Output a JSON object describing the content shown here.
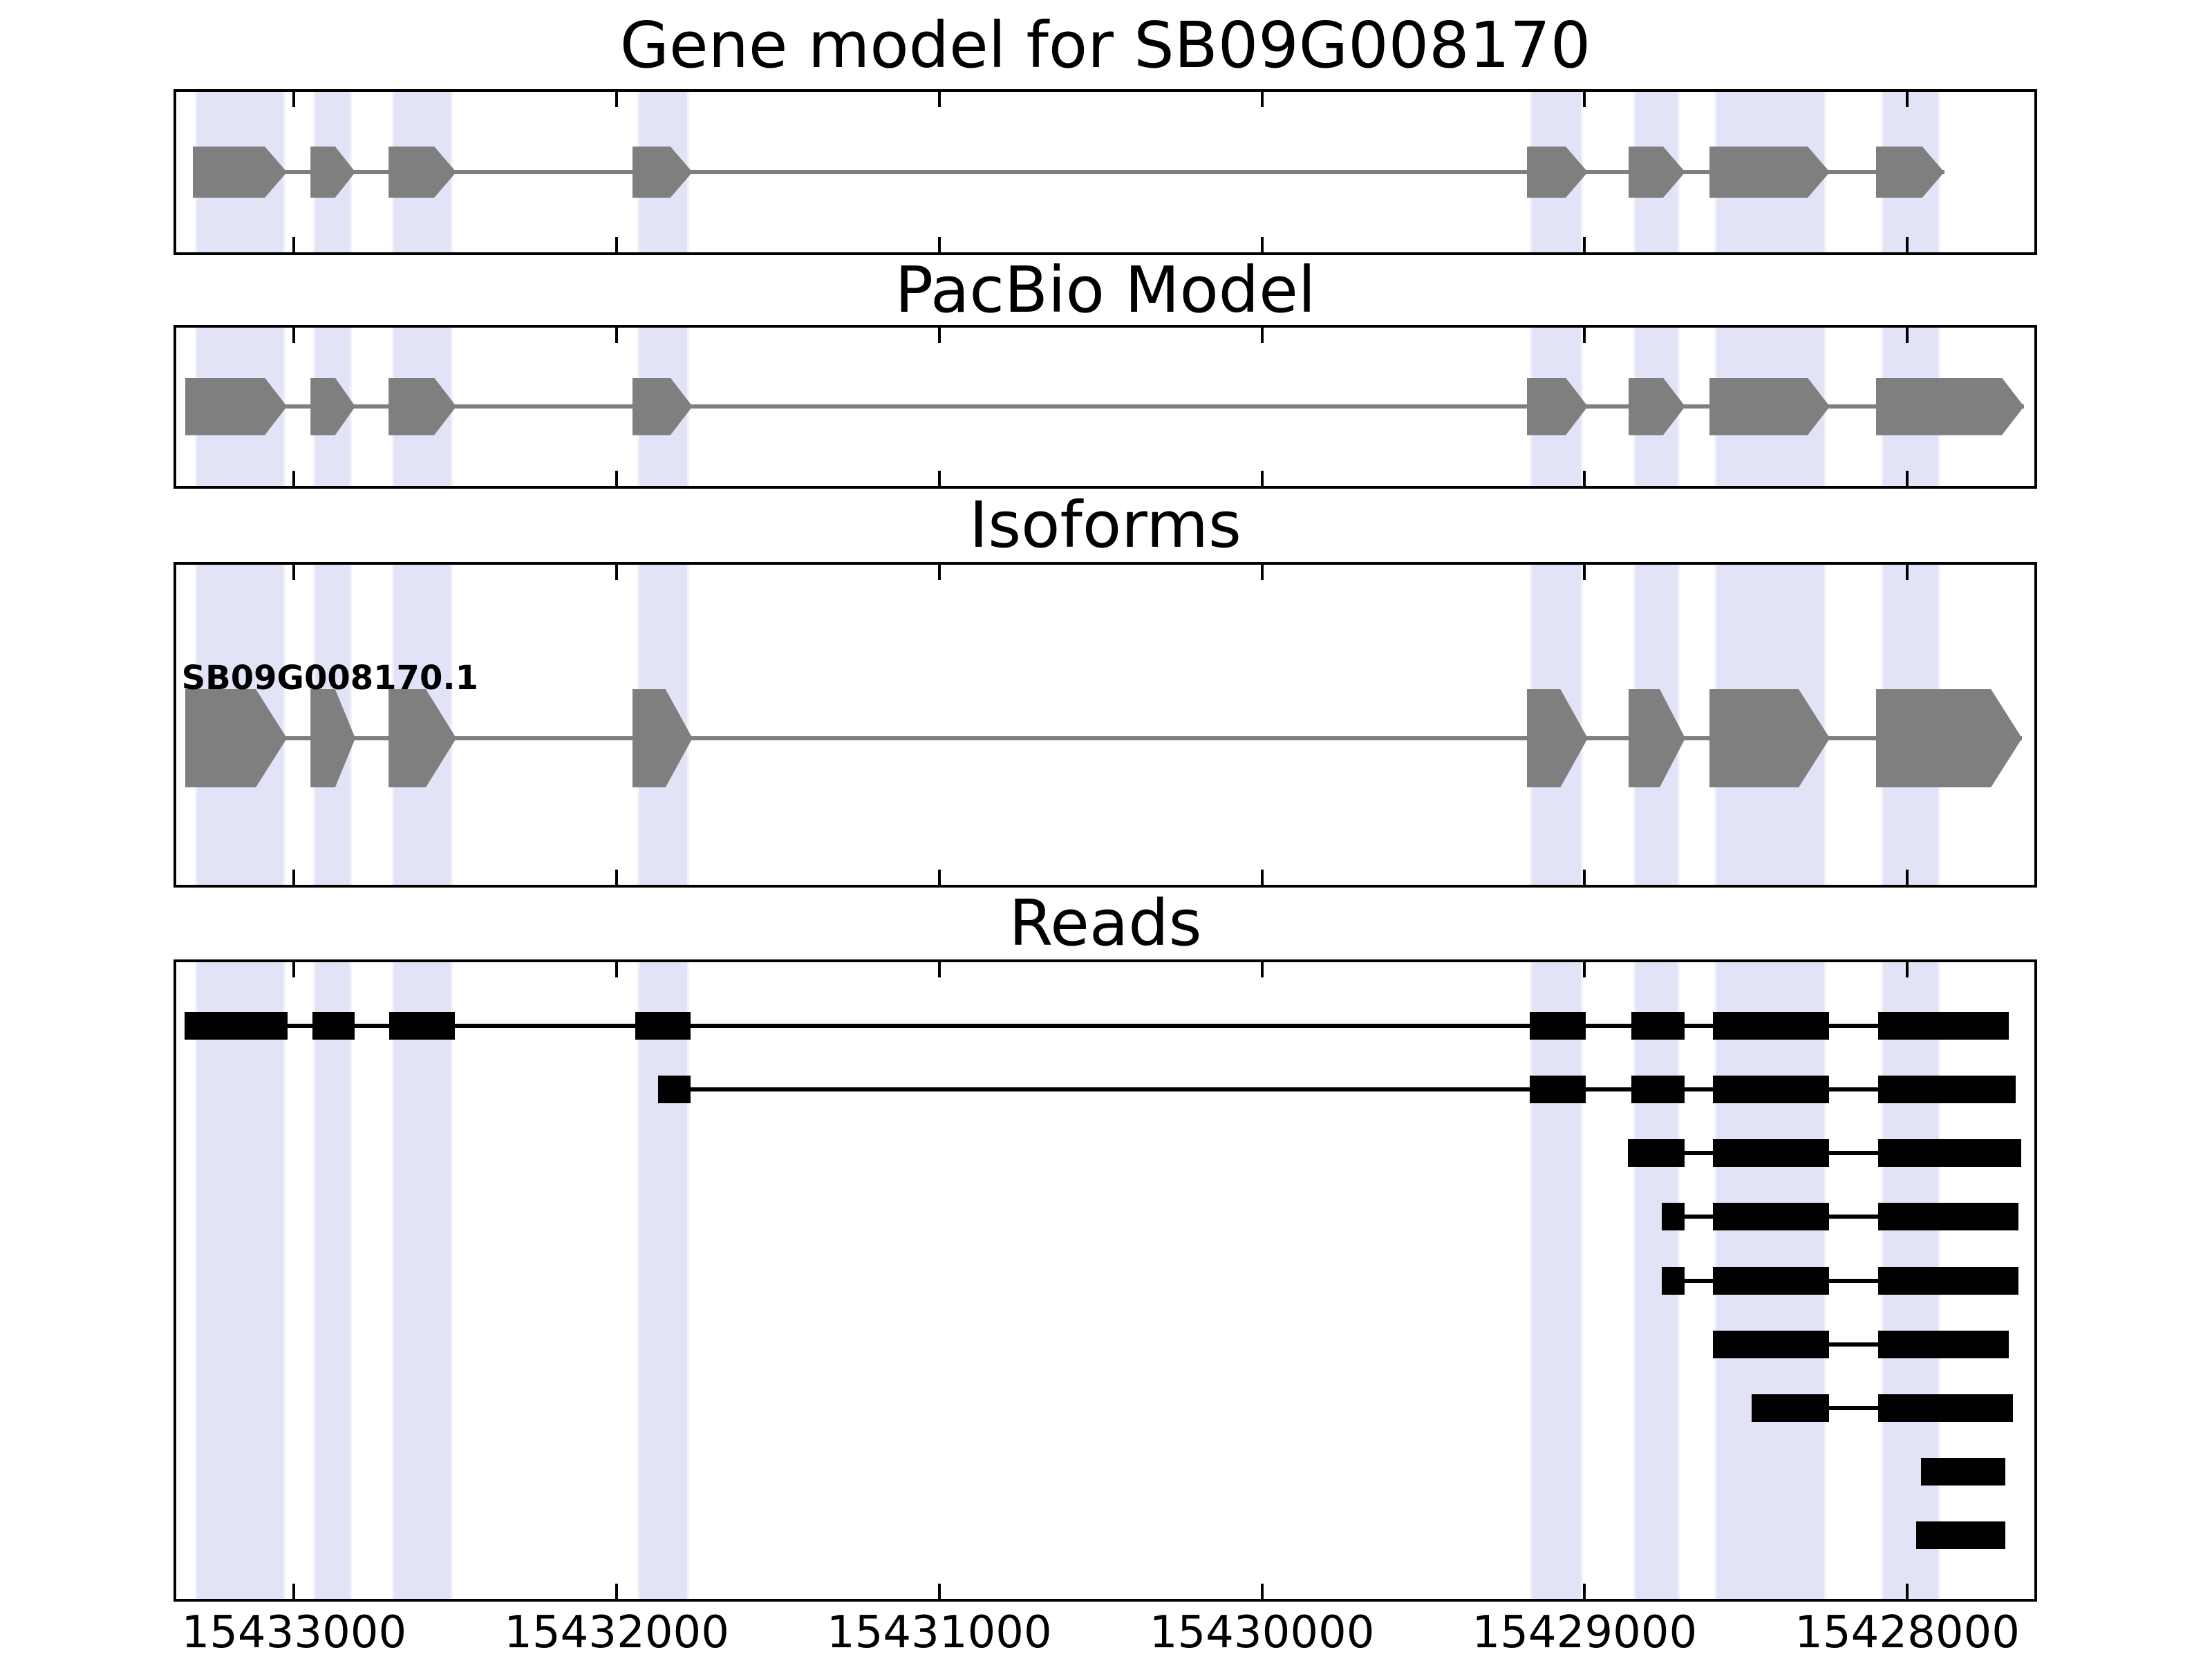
{
  "chart_data": {
    "type": "gene-model-tracks",
    "description": "Genome browser style figure with four stacked tracks sharing one genomic x axis",
    "genome_axis": {
      "xlim": [
        15433365,
        15427606
      ],
      "reversed": true,
      "tick_values": [
        15433000,
        15432000,
        15431000,
        15430000,
        15429000,
        15428000
      ],
      "tick_labels": [
        "15433000",
        "15432000",
        "15431000",
        "15430000",
        "15429000",
        "15428000"
      ]
    },
    "highlight_regions_bp": [
      [
        15433027,
        15433307
      ],
      [
        15432821,
        15432941
      ],
      [
        15432508,
        15432697
      ],
      [
        15431775,
        15431936
      ],
      [
        15429005,
        15429170
      ],
      [
        15428705,
        15428849
      ],
      [
        15428251,
        15428598
      ],
      [
        15427897,
        15428081
      ]
    ],
    "tracks": [
      {
        "name": "gene_model",
        "title": "Gene model for SB09G008170",
        "style": "arrow",
        "exons": [
          [
            15433022,
            15433314
          ],
          [
            15432810,
            15432949
          ],
          [
            15432497,
            15432707
          ],
          [
            15431765,
            15431951
          ],
          [
            15428990,
            15429179
          ],
          [
            15428688,
            15428864
          ],
          [
            15428240,
            15428613
          ],
          [
            15427885,
            15428097
          ]
        ]
      },
      {
        "name": "pacbio_model",
        "title": "PacBio Model",
        "style": "arrow",
        "exons": [
          [
            15433022,
            15433338
          ],
          [
            15432810,
            15432949
          ],
          [
            15432497,
            15432707
          ],
          [
            15431765,
            15431951
          ],
          [
            15428990,
            15429179
          ],
          [
            15428688,
            15428864
          ],
          [
            15428240,
            15428613
          ],
          [
            15427638,
            15428097
          ]
        ]
      },
      {
        "name": "isoforms",
        "title": "Isoforms",
        "style": "arrow",
        "isoform_label": "SB09G008170.1",
        "exons": [
          [
            15433022,
            15433338
          ],
          [
            15432810,
            15432949
          ],
          [
            15432497,
            15432707
          ],
          [
            15431765,
            15431951
          ],
          [
            15428990,
            15429179
          ],
          [
            15428688,
            15428864
          ],
          [
            15428240,
            15428613
          ],
          [
            15427644,
            15428097
          ]
        ]
      },
      {
        "name": "reads",
        "title": "Reads",
        "style": "box",
        "reads": [
          {
            "exons": [
              [
                15433020,
                15433340
              ],
              [
                15432812,
                15432943
              ],
              [
                15432502,
                15432705
              ],
              [
                15431771,
                15431943
              ],
              [
                15428997,
                15429170
              ],
              [
                15428690,
                15428855
              ],
              [
                15428242,
                15428602
              ],
              [
                15427685,
                15428090
              ]
            ]
          },
          {
            "exons": [
              [
                15431771,
                15431872
              ],
              [
                15428997,
                15429170
              ],
              [
                15428690,
                15428855
              ],
              [
                15428242,
                15428602
              ],
              [
                15427664,
                15428090
              ]
            ]
          },
          {
            "exons": [
              [
                15428690,
                15428866
              ],
              [
                15428242,
                15428602
              ],
              [
                15427646,
                15428090
              ]
            ]
          },
          {
            "exons": [
              [
                15428690,
                15428761
              ],
              [
                15428242,
                15428602
              ],
              [
                15427655,
                15428090
              ]
            ]
          },
          {
            "exons": [
              [
                15428690,
                15428761
              ],
              [
                15428242,
                15428602
              ],
              [
                15427655,
                15428090
              ]
            ]
          },
          {
            "exons": [
              [
                15428242,
                15428602
              ],
              [
                15427685,
                15428090
              ]
            ]
          },
          {
            "exons": [
              [
                15428242,
                15428482
              ],
              [
                15427672,
                15428090
              ]
            ]
          },
          {
            "exons": [
              [
                15427696,
                15427957
              ]
            ]
          },
          {
            "exons": [
              [
                15427696,
                15427972
              ]
            ]
          }
        ]
      }
    ],
    "colors": {
      "exon_gray": "#7f7f7f",
      "intron_gray": "#7f7f7f",
      "read_black": "#000000",
      "band_fill": "#e3e3f8",
      "panel_border": "#000000",
      "background": "#ffffff"
    }
  }
}
